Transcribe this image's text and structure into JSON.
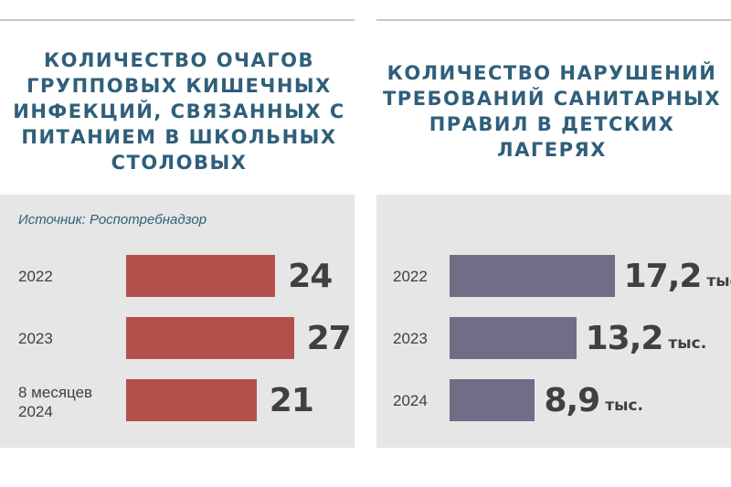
{
  "source": "Источник: Роспотребнадзор",
  "chart_data": [
    {
      "type": "bar",
      "orientation": "horizontal",
      "title": "КОЛИЧЕСТВО ОЧАГОВ ГРУППОВЫХ КИШЕЧНЫХ ИНФЕКЦИЙ, СВЯЗАННЫХ С ПИТАНИЕМ В ШКОЛЬНЫХ СТОЛОВЫХ",
      "categories": [
        "2022",
        "2023",
        "8 месяцев\n2024"
      ],
      "values": [
        24,
        27,
        21
      ],
      "value_labels": [
        "24",
        "27",
        "21"
      ],
      "unit": "",
      "color": "#b4504b"
    },
    {
      "type": "bar",
      "orientation": "horizontal",
      "title": "КОЛИЧЕСТВО НАРУШЕНИЙ ТРЕБОВАНИЙ САНИТАРНЫХ ПРАВИЛ В ДЕТСКИХ ЛАГЕРЯХ",
      "categories": [
        "2022",
        "2023",
        "2024"
      ],
      "values": [
        17.2,
        13.2,
        8.9
      ],
      "value_labels": [
        "17,2",
        "13,2",
        "8,9"
      ],
      "unit": "тыс.",
      "color": "#716d87"
    }
  ]
}
